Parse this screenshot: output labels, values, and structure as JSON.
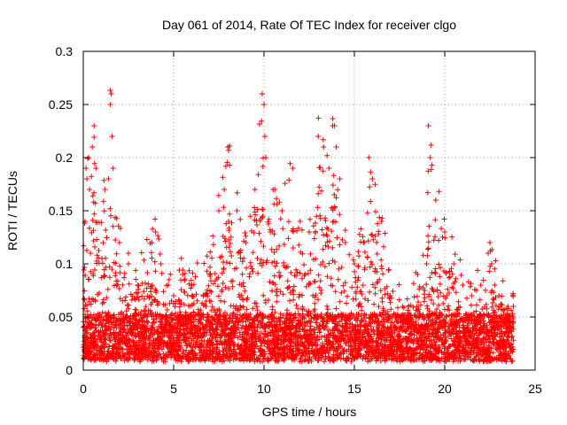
{
  "chart_data": {
    "type": "scatter",
    "title": "Day 061 of 2014, Rate Of TEC Index for receiver clgo",
    "xlabel": "GPS time / hours",
    "ylabel": "ROTI / TECUs",
    "xlim": [
      0,
      25
    ],
    "ylim": [
      0,
      0.3
    ],
    "xticks": [
      0,
      5,
      10,
      15,
      20,
      25
    ],
    "xtick_labels": [
      "0",
      "5",
      "10",
      "15",
      "20",
      "25"
    ],
    "yticks": [
      0,
      0.05,
      0.1,
      0.15,
      0.2,
      0.25,
      0.3
    ],
    "ytick_labels": [
      "0",
      "0.05",
      "0.1",
      "0.15",
      "0.2",
      "0.25",
      "0.3"
    ],
    "grid": true,
    "marker": "+",
    "marker_color": "#ff0000",
    "data_range_hours": [
      0,
      23.8
    ],
    "series": [
      {
        "name": "ROTI",
        "description_points": "representative samples; dense scatter fills baseline 0.01-0.06",
        "x": [
          0.1,
          0.15,
          0.2,
          0.3,
          0.35,
          0.4,
          0.5,
          0.6,
          0.7,
          1.2,
          1.4,
          1.5,
          1.55,
          1.6,
          1.65,
          2.0,
          2.5,
          3.0,
          3.8,
          4.0,
          4.3,
          5.0,
          5.5,
          6.0,
          7.0,
          7.5,
          7.8,
          8.0,
          8.5,
          9.0,
          9.5,
          9.9,
          10.0,
          10.05,
          10.1,
          10.5,
          11.0,
          11.6,
          12.0,
          12.5,
          13.0,
          13.3,
          13.6,
          13.8,
          13.9,
          14.0,
          14.2,
          14.5,
          15.0,
          15.5,
          15.8,
          16.0,
          16.5,
          17.0,
          18.0,
          18.5,
          19.0,
          19.1,
          19.2,
          19.5,
          20.0,
          20.5,
          21.0,
          21.5,
          22.0,
          22.4,
          22.5,
          22.6,
          23.0,
          23.5,
          23.8
        ],
        "y": [
          0.14,
          0.19,
          0.18,
          0.2,
          0.17,
          0.11,
          0.21,
          0.23,
          0.19,
          0.17,
          0.18,
          0.25,
          0.26,
          0.22,
          0.19,
          0.12,
          0.1,
          0.08,
          0.12,
          0.13,
          0.1,
          0.07,
          0.09,
          0.08,
          0.09,
          0.15,
          0.17,
          0.21,
          0.15,
          0.12,
          0.17,
          0.26,
          0.25,
          0.22,
          0.2,
          0.17,
          0.15,
          0.19,
          0.14,
          0.13,
          0.22,
          0.21,
          0.19,
          0.23,
          0.23,
          0.21,
          0.18,
          0.12,
          0.1,
          0.12,
          0.2,
          0.18,
          0.14,
          0.07,
          0.06,
          0.09,
          0.1,
          0.23,
          0.2,
          0.16,
          0.13,
          0.1,
          0.08,
          0.07,
          0.08,
          0.11,
          0.12,
          0.1,
          0.07,
          0.06,
          0.06
        ]
      }
    ]
  }
}
